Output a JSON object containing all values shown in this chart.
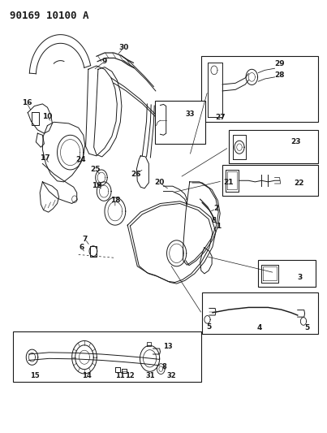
{
  "title": "90169 10100 A",
  "bg_color": "#ffffff",
  "title_fontsize": 9,
  "fig_width": 4.03,
  "fig_height": 5.33,
  "dpi": 100,
  "line_color": "#1a1a1a",
  "label_fontsize": 6.5,
  "boxes": {
    "b27_29": [
      0.615,
      0.718,
      0.972,
      0.87
    ],
    "b23": [
      0.7,
      0.622,
      0.972,
      0.7
    ],
    "b21_22": [
      0.68,
      0.548,
      0.972,
      0.62
    ],
    "b3": [
      0.79,
      0.338,
      0.965,
      0.4
    ],
    "b4_5": [
      0.618,
      0.228,
      0.972,
      0.325
    ],
    "b_filler": [
      0.04,
      0.118,
      0.615,
      0.235
    ],
    "b33": [
      0.475,
      0.668,
      0.628,
      0.768
    ]
  }
}
